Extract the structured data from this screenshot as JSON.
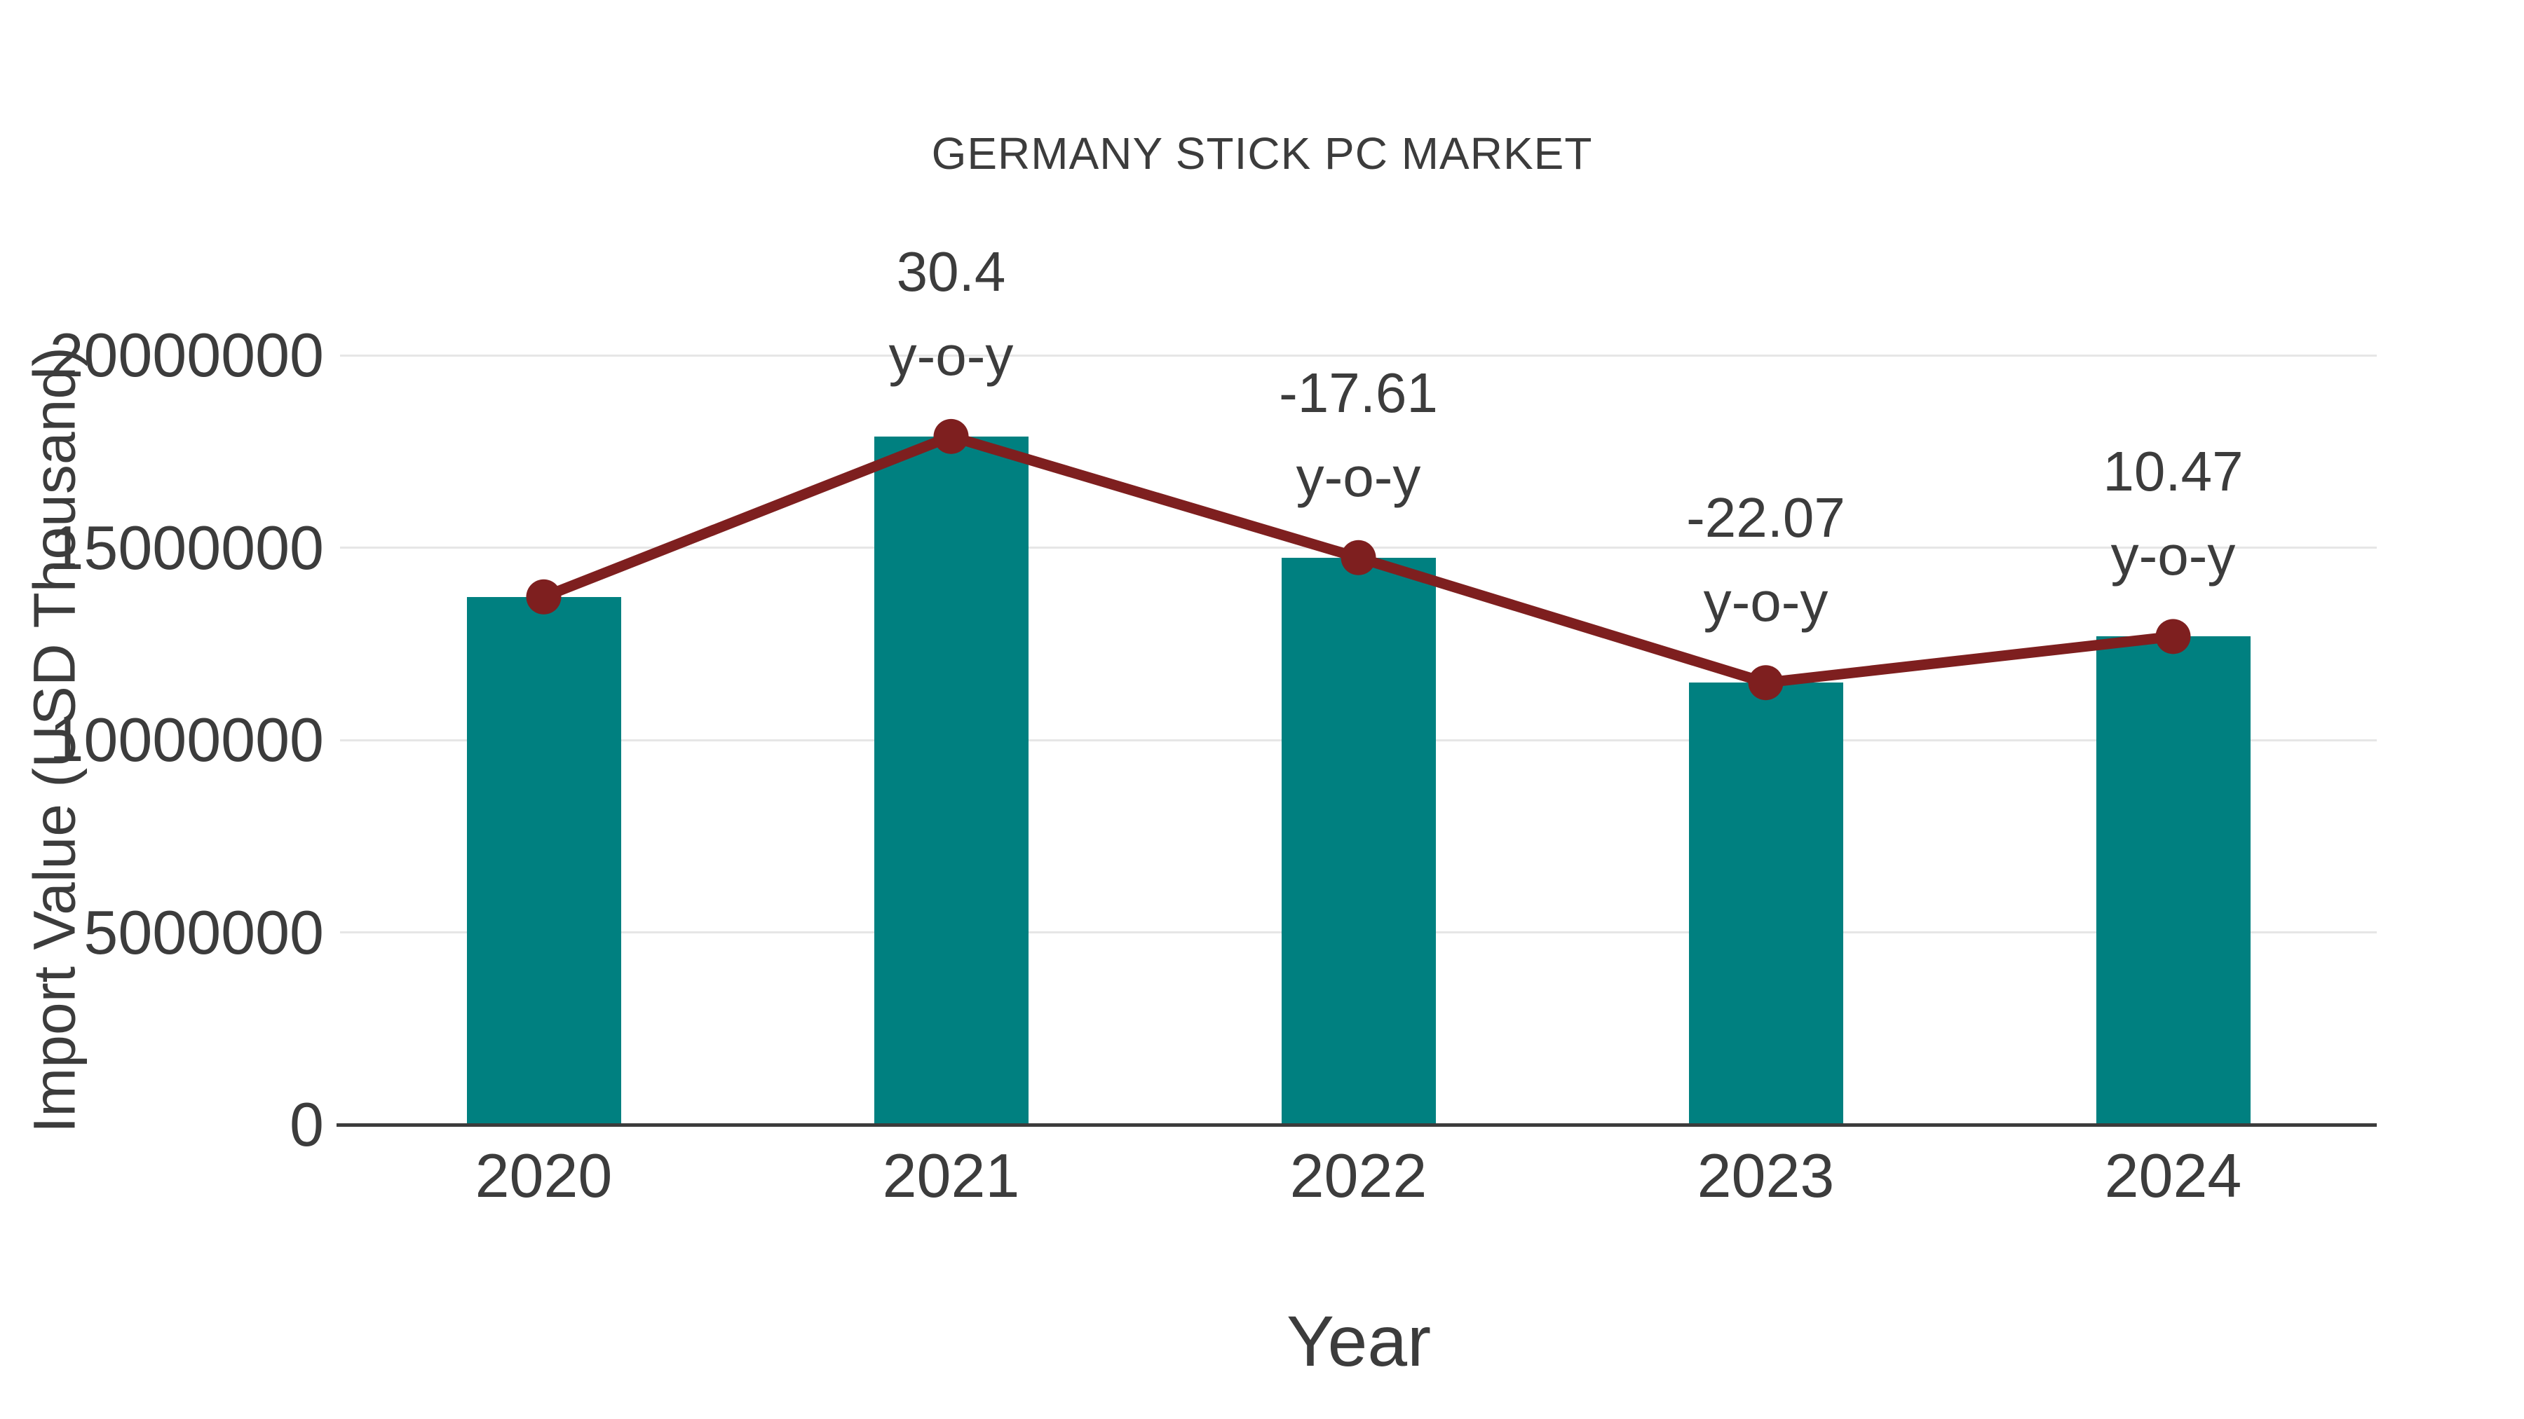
{
  "chart_data": {
    "type": "bar",
    "title": "GERMANY STICK PC MARKET",
    "xlabel": "Year",
    "ylabel": "Import Value (USD Thousand)",
    "categories": [
      "2020",
      "2021",
      "2022",
      "2023",
      "2024"
    ],
    "series": [
      {
        "name": "Import Value (USD Thousand)",
        "type": "bar",
        "values": [
          13720000,
          17890000,
          14740000,
          11490000,
          12690000
        ]
      },
      {
        "name": "y-o-y trend",
        "type": "line",
        "values": [
          13720000,
          17890000,
          14740000,
          11490000,
          12690000
        ]
      }
    ],
    "annotations": [
      {
        "category": "2021",
        "line1": "30.4",
        "line2": "y-o-y"
      },
      {
        "category": "2022",
        "line1": "-17.61",
        "line2": "y-o-y"
      },
      {
        "category": "2023",
        "line1": "-22.07",
        "line2": "y-o-y"
      },
      {
        "category": "2024",
        "line1": "10.47",
        "line2": "y-o-y"
      }
    ],
    "yticks": [
      0,
      5000000,
      10000000,
      15000000,
      20000000
    ],
    "ytick_labels": [
      "0",
      "5000000",
      "10000000",
      "15000000",
      "20000000"
    ],
    "ylim": [
      0,
      21500000
    ],
    "grid": "horizontal",
    "legend_position": "none",
    "colors": {
      "bar": "#008080",
      "line": "#7e1f1f",
      "marker": "#7e1f1f",
      "gridline": "#e6e6e6",
      "axis_line": "#3c3c3c",
      "text": "#3c3c3c"
    }
  }
}
